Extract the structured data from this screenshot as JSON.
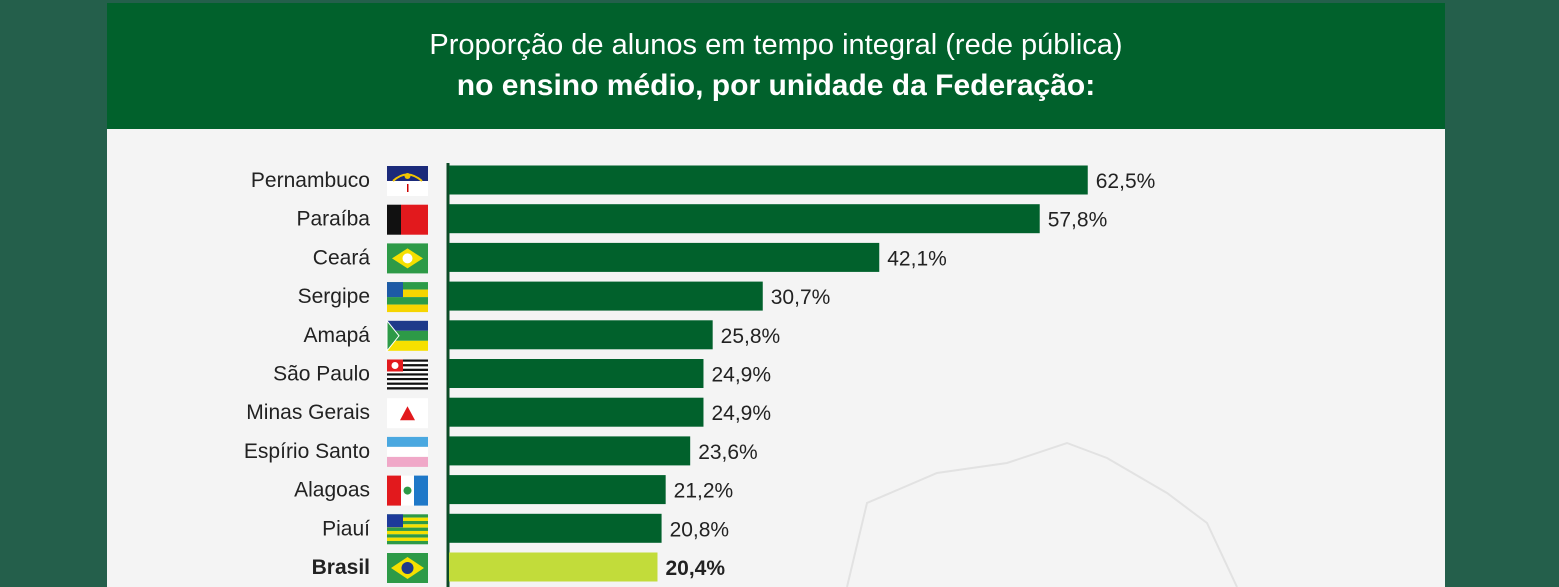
{
  "header": {
    "title_line1": "Proporção de alunos em tempo integral (rede pública)",
    "title_line2": "no ensino médio, por unidade da Federação:"
  },
  "colors": {
    "bar": "#01612c",
    "highlight": "#c2dc3a",
    "header": "#01612c"
  },
  "chart_data": {
    "type": "bar",
    "orientation": "horizontal",
    "title": "Proporção de alunos em tempo integral (rede pública) no ensino médio, por unidade da Federação:",
    "categories": [
      "Pernambuco",
      "Paraíba",
      "Ceará",
      "Sergipe",
      "Amapá",
      "São Paulo",
      "Minas Gerais",
      "Espírio Santo",
      "Alagoas",
      "Piauí",
      "Brasil"
    ],
    "values": [
      62.5,
      57.8,
      42.1,
      30.7,
      25.8,
      24.9,
      24.9,
      23.6,
      21.2,
      20.8,
      20.4
    ],
    "labels": [
      "62,5%",
      "57,8%",
      "42,1%",
      "30,7%",
      "25,8%",
      "24,9%",
      "24,9%",
      "23,6%",
      "21,2%",
      "20,8%",
      "20,4%"
    ],
    "highlight": "Brasil",
    "unit": "%",
    "xlim": [
      0,
      70
    ]
  }
}
